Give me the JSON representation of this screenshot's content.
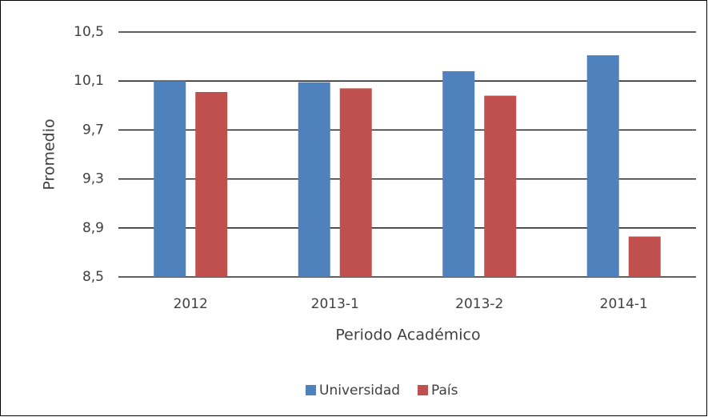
{
  "chart_data": {
    "type": "bar",
    "y_label": "Promedio",
    "x_label": "Periodo Académico",
    "categories": [
      "2012",
      "2013-1",
      "2013-2",
      "2014-1"
    ],
    "series": [
      {
        "name": "Universidad",
        "color": "#4f81bd",
        "values": [
          10.1,
          10.09,
          10.18,
          10.31
        ]
      },
      {
        "name": "País",
        "color": "#c0504d",
        "values": [
          10.01,
          10.04,
          9.98,
          8.83
        ]
      }
    ],
    "ylim": [
      8.5,
      10.5
    ],
    "yticks": [
      {
        "value": 8.5,
        "label": "8,5"
      },
      {
        "value": 8.9,
        "label": "8,9"
      },
      {
        "value": 9.3,
        "label": "9,3"
      },
      {
        "value": 9.7,
        "label": "9,7"
      },
      {
        "value": 10.1,
        "label": "10,1"
      },
      {
        "value": 10.5,
        "label": "10,5"
      }
    ],
    "grid": true,
    "legend": "bottom"
  }
}
